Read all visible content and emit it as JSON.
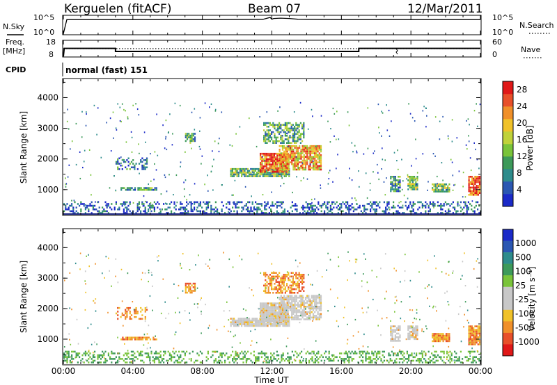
{
  "header": {
    "station": "Kerguelen (fitACF)",
    "beam": "Beam 07",
    "date": "12/Mar/2011"
  },
  "panels": {
    "nsky": {
      "label": "N.Sky",
      "right_label": "N.Search",
      "left_ticks": [
        "10^5",
        "10^0"
      ],
      "right_ticks": [
        "10^5",
        "10^0"
      ]
    },
    "freq": {
      "label_line1": "Freq.",
      "label_line2": "[MHz]",
      "right_label": "Nave",
      "left_ticks": [
        "18",
        "8"
      ],
      "right_ticks": [
        "60",
        "0"
      ]
    },
    "cpid": {
      "label": "CPID",
      "value": "normal (fast) 151"
    }
  },
  "axes": {
    "ylabel": "Slant Range [km]",
    "xlabel": "Time UT",
    "x_ticks": [
      "00:00",
      "04:00",
      "08:00",
      "12:00",
      "16:00",
      "20:00",
      "00:00"
    ],
    "y_ticks": [
      1000,
      2000,
      3000,
      4000
    ],
    "y_range_km": [
      180,
      4600
    ]
  },
  "chart_data": [
    {
      "type": "line",
      "name": "N.Sky / N.Search",
      "x_hours": [
        0,
        0.2,
        3,
        6,
        9,
        11.5,
        11.9,
        12.0,
        12.1,
        12.5,
        13,
        13.5,
        16,
        20,
        24
      ],
      "value_log10": [
        0.1,
        4.0,
        4.0,
        4.0,
        4.0,
        4.1,
        4.6,
        4.1,
        4.3,
        4.4,
        4.3,
        4.1,
        4.0,
        4.0,
        4.0
      ],
      "ylim_log10": [
        0,
        5
      ]
    },
    {
      "type": "line",
      "name": "Freq.",
      "x_hours": [
        0,
        0.05,
        3.0,
        3.0,
        17.0,
        17.0,
        24
      ],
      "freq_mhz": [
        8,
        13.2,
        13.2,
        11.2,
        11.2,
        13.2,
        13.2
      ],
      "nave_dotted": 30,
      "ylim": [
        8,
        18
      ]
    },
    {
      "type": "heatmap",
      "name": "Power",
      "colorbar_label": "Power [dB]",
      "colorbar_ticks": [
        "4",
        "8",
        "12",
        "16",
        "20",
        "24",
        "28"
      ],
      "colorbar_colors": [
        "#1b2ac8",
        "#2b57b2",
        "#2e8c8c",
        "#3d9a5a",
        "#7ac43a",
        "#c0d23a",
        "#f0c22a",
        "#f0902a",
        "#e8502a",
        "#e01818"
      ],
      "echo_regions": [
        {
          "t": [
            0.0,
            24.0
          ],
          "r": [
            230,
            620
          ],
          "level": 0.15,
          "density": 0.35
        },
        {
          "t": [
            3.2,
            5.4
          ],
          "r": [
            1000,
            1080
          ],
          "level": 0.3,
          "density": 0.8
        },
        {
          "t": [
            3.0,
            4.8
          ],
          "r": [
            1650,
            2050
          ],
          "level": 0.2,
          "density": 0.4
        },
        {
          "t": [
            7.0,
            7.6
          ],
          "r": [
            2550,
            2850
          ],
          "level": 0.35,
          "density": 0.7
        },
        {
          "t": [
            9.6,
            13.0
          ],
          "r": [
            1450,
            1700
          ],
          "level": 0.4,
          "density": 0.9
        },
        {
          "t": [
            11.3,
            12.9
          ],
          "r": [
            1600,
            2200
          ],
          "level": 0.8,
          "density": 0.9
        },
        {
          "t": [
            12.4,
            14.8
          ],
          "r": [
            1650,
            2450
          ],
          "level": 0.7,
          "density": 0.8
        },
        {
          "t": [
            11.5,
            13.8
          ],
          "r": [
            2500,
            3200
          ],
          "level": 0.35,
          "density": 0.6
        },
        {
          "t": [
            18.8,
            19.4
          ],
          "r": [
            950,
            1450
          ],
          "level": 0.3,
          "density": 0.7
        },
        {
          "t": [
            19.8,
            20.4
          ],
          "r": [
            1000,
            1450
          ],
          "level": 0.45,
          "density": 0.8
        },
        {
          "t": [
            21.2,
            22.2
          ],
          "r": [
            950,
            1200
          ],
          "level": 0.45,
          "density": 0.9
        },
        {
          "t": [
            23.3,
            24.0
          ],
          "r": [
            850,
            1450
          ],
          "level": 0.85,
          "density": 0.9
        }
      ]
    },
    {
      "type": "heatmap",
      "name": "Velocity",
      "colorbar_label": "Velocity [m s⁻¹]",
      "colorbar_ticks": [
        "1000",
        "500",
        "100",
        "25",
        "-25",
        "-100",
        "-500",
        "-1000"
      ],
      "colorbar_colors": [
        "#1b2ac8",
        "#2b57b2",
        "#2e8c8c",
        "#3d9a5a",
        "#7ac43a",
        "#c8c8c8",
        "#c8c8c8",
        "#f0c22a",
        "#f0902a",
        "#e8502a",
        "#e01818"
      ],
      "ground_scatter_color": "#c8c8c8",
      "echo_regions": [
        {
          "t": [
            0.0,
            24.0
          ],
          "r": [
            230,
            620
          ],
          "kind": "green",
          "density": 0.35
        },
        {
          "t": [
            3.2,
            5.4
          ],
          "r": [
            1000,
            1080
          ],
          "kind": "orange",
          "density": 0.8
        },
        {
          "t": [
            3.0,
            4.8
          ],
          "r": [
            1650,
            2050
          ],
          "kind": "orange",
          "density": 0.4
        },
        {
          "t": [
            7.0,
            7.6
          ],
          "r": [
            2550,
            2850
          ],
          "kind": "orange",
          "density": 0.7
        },
        {
          "t": [
            9.6,
            13.0
          ],
          "r": [
            1450,
            1700
          ],
          "kind": "gray",
          "density": 0.9
        },
        {
          "t": [
            11.3,
            12.9
          ],
          "r": [
            1600,
            2200
          ],
          "kind": "gray",
          "density": 0.9
        },
        {
          "t": [
            12.4,
            14.8
          ],
          "r": [
            1650,
            2450
          ],
          "kind": "gray",
          "density": 0.8
        },
        {
          "t": [
            11.5,
            13.8
          ],
          "r": [
            2500,
            3200
          ],
          "kind": "orange",
          "density": 0.6
        },
        {
          "t": [
            18.8,
            19.4
          ],
          "r": [
            950,
            1450
          ],
          "kind": "gray",
          "density": 0.7
        },
        {
          "t": [
            19.8,
            20.4
          ],
          "r": [
            1000,
            1450
          ],
          "kind": "gray",
          "density": 0.8
        },
        {
          "t": [
            21.2,
            22.2
          ],
          "r": [
            950,
            1200
          ],
          "kind": "orange",
          "density": 0.9
        },
        {
          "t": [
            23.3,
            24.0
          ],
          "r": [
            850,
            1450
          ],
          "kind": "orange",
          "density": 0.9
        }
      ]
    }
  ]
}
